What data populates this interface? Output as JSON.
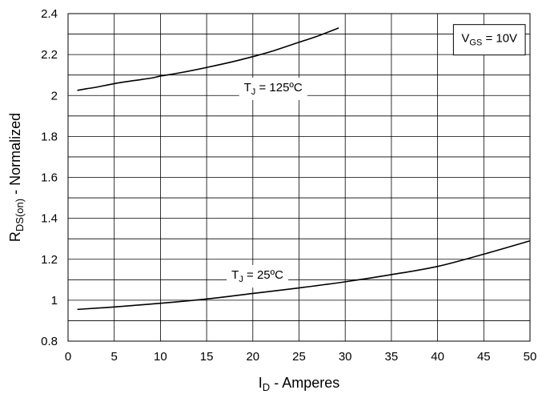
{
  "chart_data": {
    "type": "line",
    "title": "",
    "xlabel": {
      "main": "I",
      "sub": "D",
      "rest": " - Amperes"
    },
    "ylabel": {
      "main": "R",
      "sub": "DS(on)",
      "rest": " - Normalized"
    },
    "xlim": [
      0,
      50
    ],
    "ylim": [
      0.8,
      2.4
    ],
    "x_ticks": [
      0,
      5,
      10,
      15,
      20,
      25,
      30,
      35,
      40,
      45,
      50
    ],
    "y_ticks": [
      0.8,
      1,
      1.2,
      1.4,
      1.6,
      1.8,
      2,
      2.2,
      2.4
    ],
    "x_tick_labels": [
      "0",
      "5",
      "10",
      "15",
      "20",
      "25",
      "30",
      "35",
      "40",
      "45",
      "50"
    ],
    "y_tick_labels": [
      "0.8",
      "1",
      "1.2",
      "1.4",
      "1.6",
      "1.8",
      "2",
      "2.2",
      "2.4"
    ],
    "x_minor_step": 5,
    "y_minor_step": 0.1,
    "grid": true,
    "series": [
      {
        "x": [
          1,
          2,
          3,
          5,
          7,
          9,
          10,
          12,
          15,
          18,
          20,
          22,
          25,
          27,
          29.3
        ],
        "y": [
          2.025,
          2.033,
          2.04,
          2.058,
          2.072,
          2.085,
          2.095,
          2.11,
          2.137,
          2.167,
          2.19,
          2.215,
          2.26,
          2.29,
          2.33
        ]
      },
      {
        "x": [
          1,
          5,
          10,
          15,
          20,
          25,
          30,
          35,
          40,
          45,
          50
        ],
        "y": [
          0.955,
          0.967,
          0.985,
          1.006,
          1.033,
          1.06,
          1.09,
          1.125,
          1.165,
          1.225,
          1.29
        ]
      }
    ],
    "annotations": [
      {
        "id": "tj125",
        "main": "T",
        "sub": "J",
        "rest": " = 125ºC",
        "x": 22.2,
        "y": 2.04,
        "boxed": false
      },
      {
        "id": "tj25",
        "main": "T",
        "sub": "J",
        "rest": " = 25ºC",
        "x": 20.5,
        "y": 1.125,
        "boxed": false
      },
      {
        "id": "vgs",
        "main": "V",
        "sub": "GS",
        "rest": " = 10V",
        "x": 45.6,
        "y": 2.28,
        "boxed": true
      }
    ]
  }
}
